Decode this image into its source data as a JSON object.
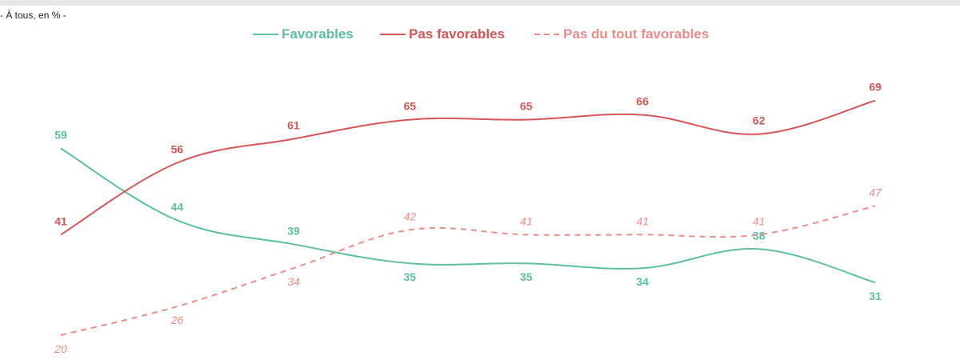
{
  "subtitle": "- À tous, en % -",
  "legend": [
    {
      "label": "Favorables",
      "color": "#5bbfa2",
      "dashed": false
    },
    {
      "label": "Pas favorables",
      "color": "#d5555a",
      "dashed": false
    },
    {
      "label": "Pas du tout favorables",
      "color": "#eb8c8c",
      "dashed": true
    }
  ],
  "chart_data": {
    "type": "line",
    "title": "",
    "xlabel": "",
    "ylabel": "",
    "x": [
      "1",
      "2",
      "3",
      "4",
      "5",
      "6",
      "7",
      "8"
    ],
    "grid": false,
    "legend_position": "top-center",
    "series": [
      {
        "name": "Favorables",
        "color": "#5bbfa2",
        "values": [
          59,
          44,
          39,
          35,
          35,
          34,
          38,
          31
        ]
      },
      {
        "name": "Pas favorables",
        "color": "#d5555a",
        "values": [
          41,
          56,
          61,
          65,
          65,
          66,
          62,
          69
        ]
      },
      {
        "name": "Pas du tout favorables",
        "color": "#eb8c8c",
        "dashed": true,
        "values": [
          20,
          26,
          34,
          42,
          41,
          41,
          41,
          47
        ]
      }
    ]
  }
}
